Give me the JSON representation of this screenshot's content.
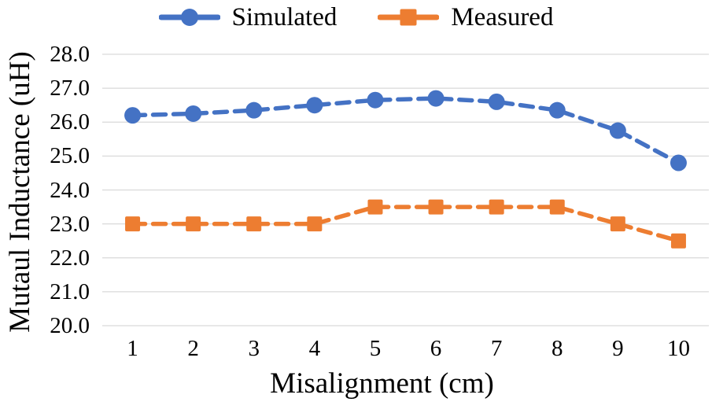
{
  "figure": {
    "background": "#ffffff",
    "text_color": "#000000"
  },
  "chart_data": {
    "type": "line",
    "title": "",
    "categories": [
      "1",
      "2",
      "3",
      "4",
      "5",
      "6",
      "7",
      "8",
      "9",
      "10"
    ],
    "series": [
      {
        "name": "Simulated",
        "marker": "circle",
        "color": "#4472C4",
        "values": [
          26.2,
          26.25,
          26.35,
          26.5,
          26.65,
          26.7,
          26.6,
          26.35,
          25.75,
          24.8
        ]
      },
      {
        "name": "Measured",
        "marker": "square",
        "color": "#ED7D31",
        "values": [
          23.0,
          23.0,
          23.0,
          23.0,
          23.5,
          23.5,
          23.5,
          23.5,
          23.0,
          22.5
        ]
      }
    ],
    "xlabel": "Misalignment (cm)",
    "ylabel": "Mutaul Inductance (uH)",
    "ylim": [
      20.0,
      28.0
    ],
    "ytick_labels": [
      "20.0",
      "21.0",
      "22.0",
      "23.0",
      "24.0",
      "25.0",
      "26.0",
      "27.0",
      "28.0"
    ],
    "line_style": "dashed",
    "grid": "horizontal-only",
    "gridline_color": "#D9D9D9",
    "legend_position": "top"
  }
}
